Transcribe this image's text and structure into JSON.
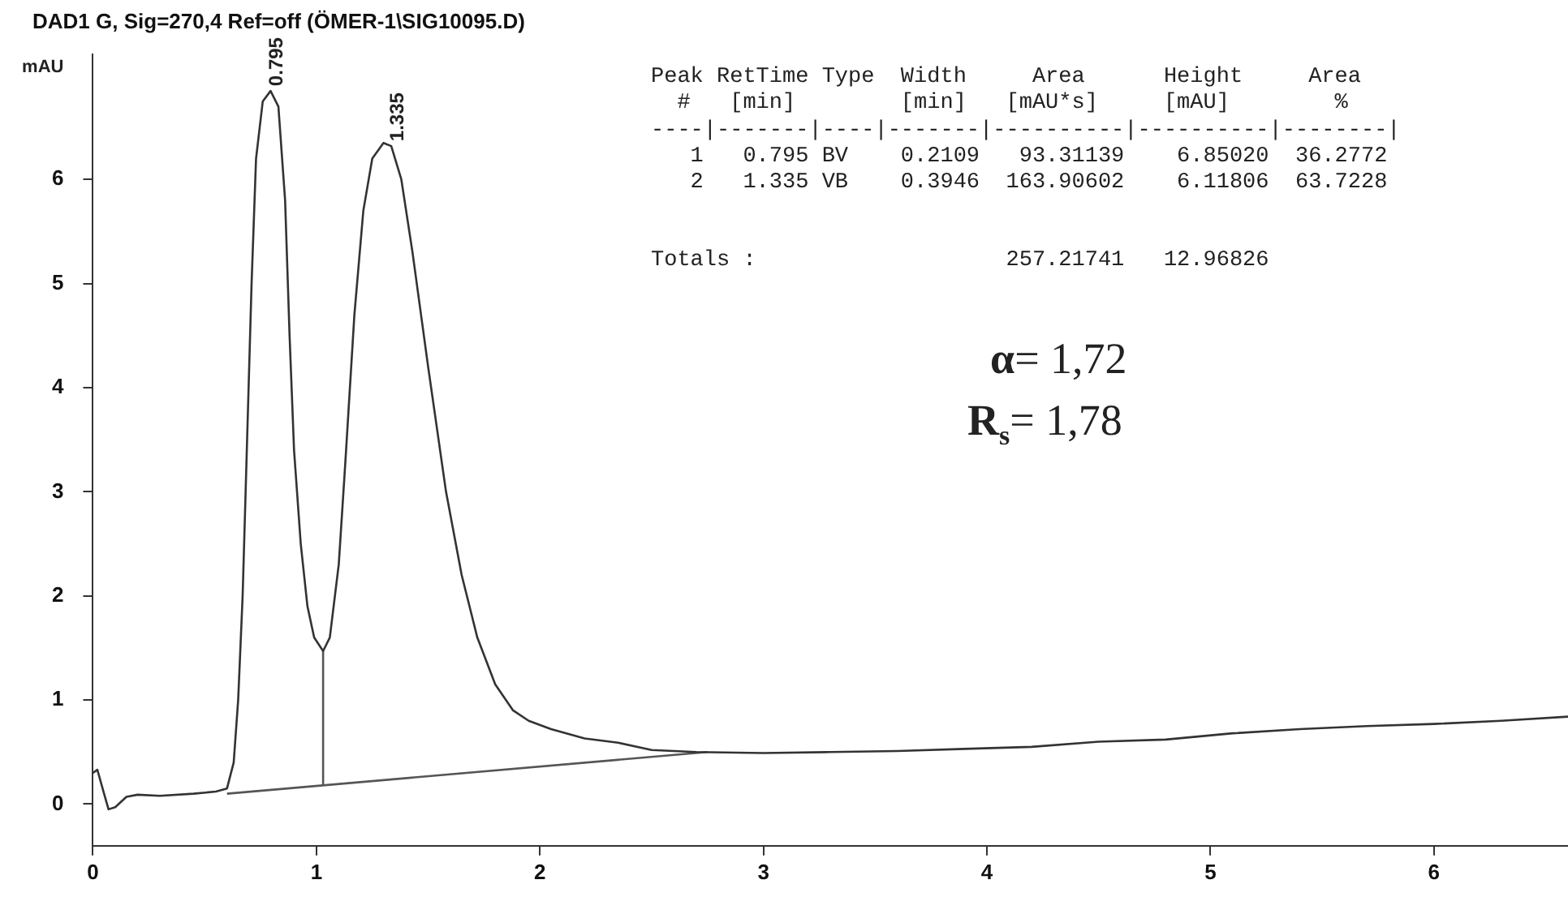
{
  "chart_data": {
    "type": "line",
    "title": "DAD1 G, Sig=270,4 Ref=off (ÖMER-1\\SIG10095.D)",
    "ylabel": "mAU",
    "xlim": [
      0,
      6.6
    ],
    "xticks": [
      0,
      1,
      2,
      3,
      4,
      5,
      6
    ],
    "ylim": [
      -0.4,
      7.2
    ],
    "yticks": [
      0,
      1,
      2,
      3,
      4,
      5,
      6
    ],
    "grid": false,
    "legend": false,
    "marker": "none",
    "line_style": "solid",
    "series": [
      {
        "color": "#333333",
        "x": [
          0,
          0.02,
          0.05,
          0.07,
          0.1,
          0.15,
          0.2,
          0.3,
          0.45,
          0.55,
          0.6,
          0.63,
          0.65,
          0.67,
          0.69,
          0.71,
          0.73,
          0.76,
          0.795,
          0.83,
          0.86,
          0.88,
          0.9,
          0.93,
          0.96,
          0.99,
          1.03,
          1.06,
          1.1,
          1.13,
          1.17,
          1.21,
          1.25,
          1.3,
          1.335,
          1.38,
          1.43,
          1.5,
          1.58,
          1.65,
          1.72,
          1.8,
          1.88,
          1.95,
          2.05,
          2.2,
          2.35,
          2.5,
          2.7,
          3.0,
          3.3,
          3.6,
          3.9,
          4.2,
          4.5,
          4.8,
          5.1,
          5.4,
          5.7,
          6.0,
          6.3,
          6.6
        ],
        "values": [
          0.3,
          0.33,
          0.1,
          -0.05,
          -0.03,
          0.07,
          0.09,
          0.08,
          0.1,
          0.12,
          0.15,
          0.4,
          1.0,
          2,
          3.5,
          5,
          6.2,
          6.75,
          6.85,
          6.7,
          5.8,
          4.5,
          3.4,
          2.5,
          1.9,
          1.6,
          1.47,
          1.6,
          2.3,
          3.3,
          4.7,
          5.7,
          6.2,
          6.35,
          6.32,
          6.0,
          5.3,
          4.2,
          3.0,
          2.2,
          1.6,
          1.15,
          0.9,
          0.8,
          0.72,
          0.63,
          0.59,
          0.52,
          0.5,
          0.49,
          0.5,
          0.51,
          0.53,
          0.55,
          0.6,
          0.62,
          0.68,
          0.72,
          0.75,
          0.77,
          0.8,
          0.84
        ]
      },
      {
        "color": "#555555",
        "x": [
          0.6,
          2.75
        ],
        "values": [
          0.1,
          0.5
        ]
      },
      {
        "color": "#555555",
        "x": [
          1.03,
          1.03
        ],
        "values": [
          0.18,
          1.47
        ]
      }
    ],
    "annotations": [
      {
        "text": "0.795",
        "x": 0.795,
        "y": 6.85
      },
      {
        "text": "1.335",
        "x": 1.335,
        "y": 6.32
      },
      "Peak RetTime Type  Width     Area      Height     Area",
      "  #   [min]        [min]   [mAU*s]     [mAU]        %",
      "----|-------|----|-------|----------|----------|--------|",
      "   1   0.795 BV    0.2109   93.31139    6.85020  36.2772",
      "   2   1.335 VB    0.3946  163.90602    6.11806  63.7228",
      "Totals :                   257.21741   12.96826",
      "α= 1,72",
      "R$_{s}$= 1,78"
    ]
  }
}
